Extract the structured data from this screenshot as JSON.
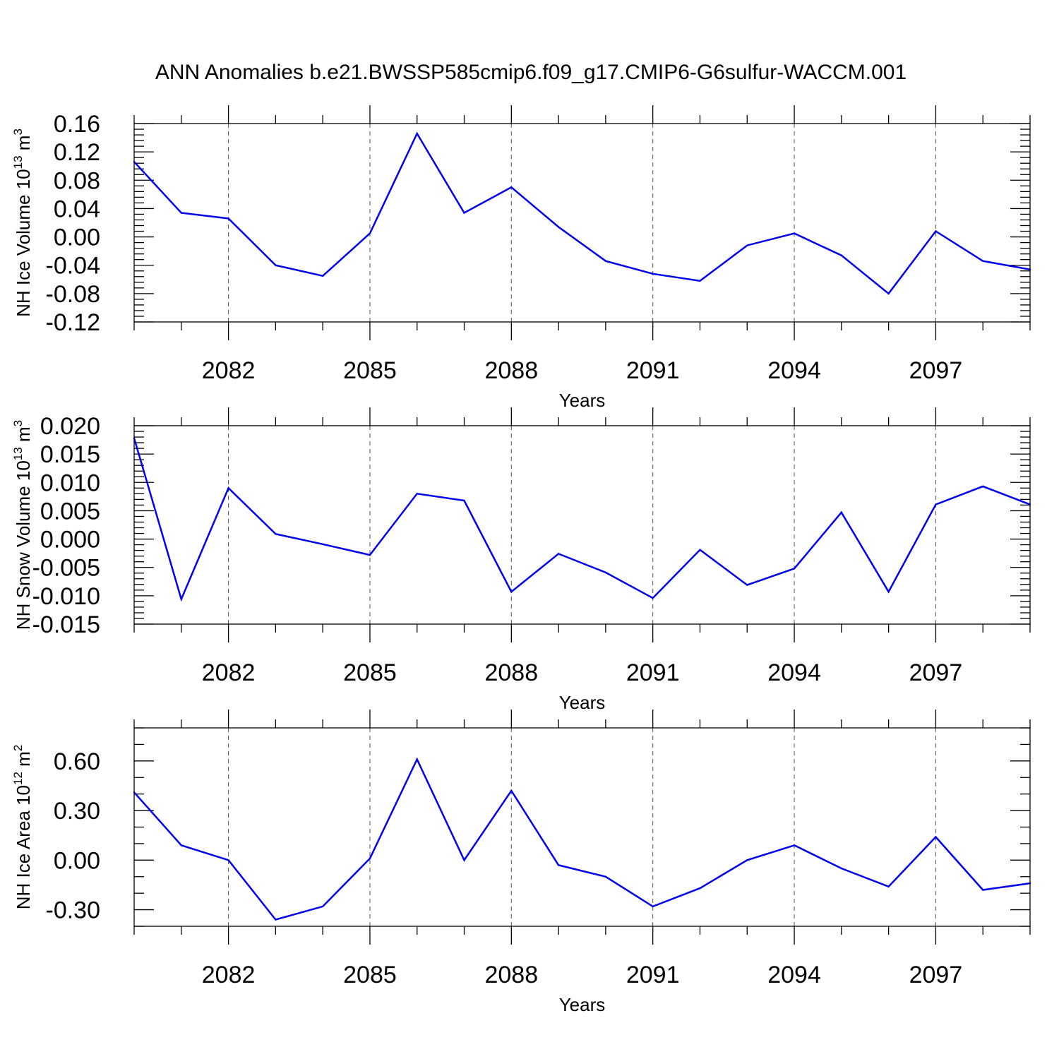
{
  "title": "ANN Anomalies b.e21.BWSSP585cmip6.f09_g17.CMIP6-G6sulfur-WACCM.001",
  "colors": {
    "line": "#0000ee",
    "axis": "#000000",
    "grid": "#555555"
  },
  "chart_data": [
    {
      "type": "line",
      "ylabel": {
        "text": "NH Ice Volume 10",
        "exp": "13",
        "unit": " m",
        "unit_exp": "3"
      },
      "xlabel": "Years",
      "xlim": [
        2080,
        2099
      ],
      "ylim": [
        -0.12,
        0.16
      ],
      "yticks": [
        -0.12,
        -0.08,
        -0.04,
        0.0,
        0.04,
        0.08,
        0.12,
        0.16
      ],
      "ytick_labels": [
        "-0.12",
        "-0.08",
        "-0.04",
        "0.00",
        "0.04",
        "0.08",
        "0.12",
        "0.16"
      ],
      "yminor_step": 0.008,
      "xticks": [
        2082,
        2085,
        2088,
        2091,
        2094,
        2097
      ],
      "xtick_labels": [
        "2082",
        "2085",
        "2088",
        "2091",
        "2094",
        "2097"
      ],
      "grid": "vertical dashed at major x ticks",
      "x": [
        2080,
        2081,
        2082,
        2083,
        2084,
        2085,
        2086,
        2087,
        2088,
        2089,
        2090,
        2091,
        2092,
        2093,
        2094,
        2095,
        2096,
        2097,
        2098,
        2099
      ],
      "values": [
        0.106,
        0.034,
        0.026,
        -0.04,
        -0.055,
        0.005,
        0.146,
        0.034,
        0.07,
        0.014,
        -0.034,
        -0.052,
        -0.062,
        -0.012,
        0.005,
        -0.026,
        -0.08,
        0.008,
        -0.034,
        -0.046
      ]
    },
    {
      "type": "line",
      "ylabel": {
        "text": "NH Snow Volume 10",
        "exp": "13",
        "unit": " m",
        "unit_exp": "3"
      },
      "xlabel": "Years",
      "xlim": [
        2080,
        2099
      ],
      "ylim": [
        -0.015,
        0.02
      ],
      "yticks": [
        -0.015,
        -0.01,
        -0.005,
        0.0,
        0.005,
        0.01,
        0.015,
        0.02
      ],
      "ytick_labels": [
        "-0.015",
        "-0.010",
        "-0.005",
        "0.000",
        "0.005",
        "0.010",
        "0.015",
        "0.020"
      ],
      "yminor_step": 0.001,
      "xticks": [
        2082,
        2085,
        2088,
        2091,
        2094,
        2097
      ],
      "xtick_labels": [
        "2082",
        "2085",
        "2088",
        "2091",
        "2094",
        "2097"
      ],
      "grid": "vertical dashed at major x ticks",
      "x": [
        2080,
        2081,
        2082,
        2083,
        2084,
        2085,
        2086,
        2087,
        2088,
        2089,
        2090,
        2091,
        2092,
        2093,
        2094,
        2095,
        2096,
        2097,
        2098,
        2099
      ],
      "values": [
        0.0178,
        -0.0106,
        0.009,
        0.0009,
        -0.0009,
        -0.0028,
        0.008,
        0.0068,
        -0.0093,
        -0.0026,
        -0.0059,
        -0.0104,
        -0.0019,
        -0.0081,
        -0.0052,
        0.0047,
        -0.0093,
        0.0061,
        0.0093,
        0.0061
      ]
    },
    {
      "type": "line",
      "ylabel": {
        "text": "NH Ice Area 10",
        "exp": "12",
        "unit": " m",
        "unit_exp": "2"
      },
      "xlabel": "Years",
      "xlim": [
        2080,
        2099
      ],
      "ylim": [
        -0.4,
        0.8
      ],
      "yticks": [
        -0.3,
        0.0,
        0.3,
        0.6
      ],
      "ytick_labels": [
        "-0.30",
        "0.00",
        "0.30",
        "0.60"
      ],
      "yminor_step": 0.1,
      "xticks": [
        2082,
        2085,
        2088,
        2091,
        2094,
        2097
      ],
      "xtick_labels": [
        "2082",
        "2085",
        "2088",
        "2091",
        "2094",
        "2097"
      ],
      "grid": "vertical dashed at major x ticks",
      "x": [
        2080,
        2081,
        2082,
        2083,
        2084,
        2085,
        2086,
        2087,
        2088,
        2089,
        2090,
        2091,
        2092,
        2093,
        2094,
        2095,
        2096,
        2097,
        2098,
        2099
      ],
      "values": [
        0.41,
        0.09,
        0.0,
        -0.36,
        -0.28,
        0.01,
        0.61,
        0.0,
        0.42,
        -0.03,
        -0.1,
        -0.28,
        -0.17,
        0.0,
        0.09,
        -0.05,
        -0.16,
        0.14,
        -0.18,
        -0.14
      ]
    }
  ]
}
